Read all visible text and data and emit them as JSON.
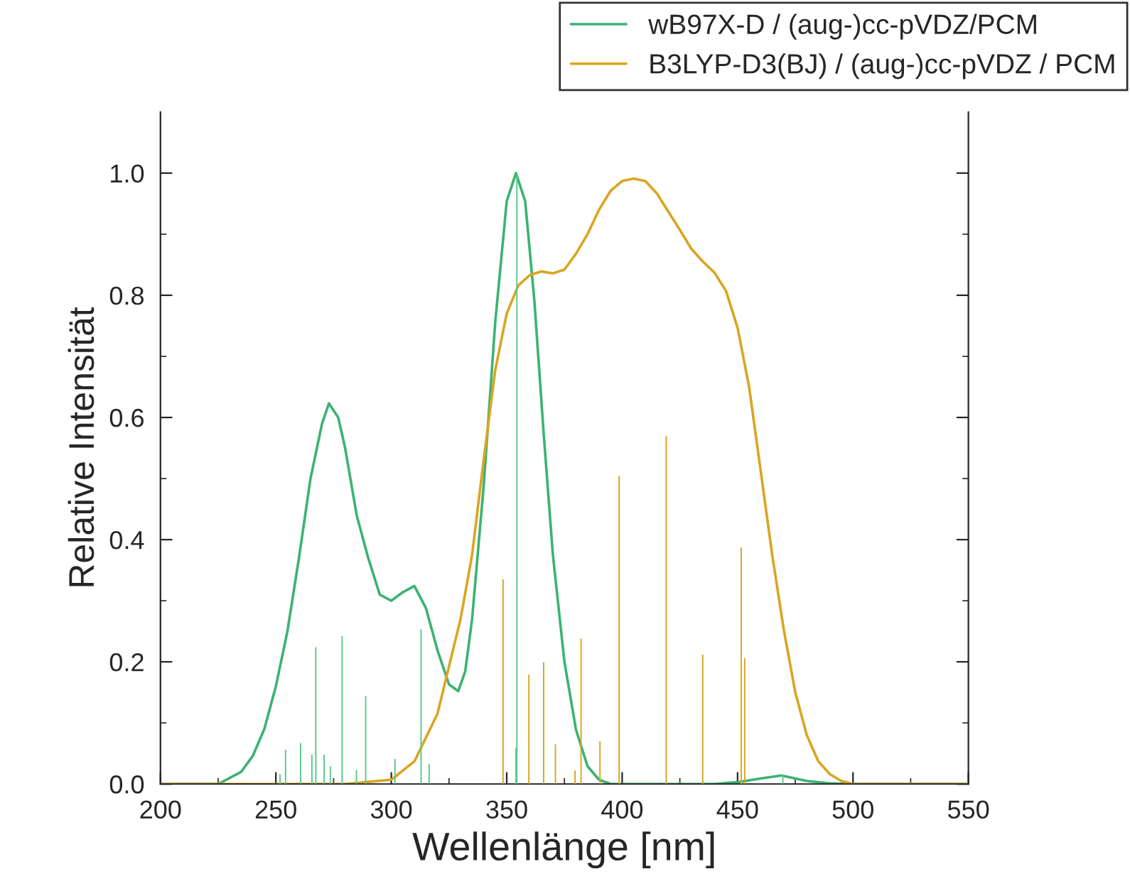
{
  "chart_data": {
    "type": "line",
    "xlabel": "Wellenlänge [nm]",
    "ylabel": "Relative Intensität",
    "xlim": [
      200,
      550
    ],
    "ylim": [
      0,
      1.1
    ],
    "xticks": [
      200,
      {
        "value": 225,
        "label": null
      },
      250,
      {
        "value": 275,
        "label": null
      },
      300,
      {
        "value": 325,
        "label": null
      },
      350,
      {
        "value": 375,
        "label": null
      },
      400,
      {
        "value": 425,
        "label": null
      },
      450,
      {
        "value": 475,
        "label": null
      },
      500,
      {
        "value": 525,
        "label": null
      },
      550
    ],
    "yticks": [
      {
        "value": 0,
        "label": "0.0"
      },
      {
        "value": 0.1,
        "label": null
      },
      {
        "value": 0.2,
        "label": "0.2"
      },
      {
        "value": 0.3,
        "label": null
      },
      {
        "value": 0.4,
        "label": "0.4"
      },
      {
        "value": 0.5,
        "label": null
      },
      {
        "value": 0.6,
        "label": "0.6"
      },
      {
        "value": 0.7,
        "label": null
      },
      {
        "value": 0.8,
        "label": "0.8"
      },
      {
        "value": 0.9,
        "label": null
      },
      {
        "value": 1.0,
        "label": "1.0"
      }
    ],
    "grid": false,
    "legend": "top right",
    "marker": "none",
    "line_style": "solid",
    "series": [
      {
        "name": "wB97X-D / (aug-)cc-pVDZ/PCM",
        "color": "#3cb371",
        "x": [
          200,
          225,
          235,
          240,
          245,
          250,
          255,
          260,
          265,
          270,
          273,
          277,
          280,
          285,
          290,
          295,
          300,
          305,
          310,
          315,
          320,
          325,
          329,
          332,
          335,
          340,
          345,
          350,
          354,
          358,
          362,
          366,
          370,
          375,
          380,
          385,
          390,
          395,
          440,
          450,
          460,
          469,
          480,
          490,
          500,
          550
        ],
        "values": [
          0,
          0,
          0.02,
          0.046,
          0.09,
          0.16,
          0.25,
          0.37,
          0.5,
          0.59,
          0.623,
          0.6,
          0.55,
          0.44,
          0.37,
          0.31,
          0.3,
          0.314,
          0.324,
          0.288,
          0.219,
          0.163,
          0.152,
          0.184,
          0.27,
          0.487,
          0.755,
          0.954,
          1.0,
          0.954,
          0.79,
          0.574,
          0.375,
          0.2,
          0.089,
          0.029,
          0.007,
          0,
          0,
          0.003,
          0.009,
          0.014,
          0.005,
          0.001,
          0,
          0
        ]
      },
      {
        "name": "B3LYP-D3(BJ) / (aug-)cc-pVDZ / PCM",
        "color": "#daa520",
        "x": [
          200,
          260,
          280,
          300,
          310,
          320,
          330,
          335,
          340,
          345,
          350,
          355,
          360,
          365,
          370,
          375,
          380,
          385,
          390,
          395,
          400,
          405,
          410,
          415,
          420,
          425,
          430,
          435,
          440,
          445,
          450,
          455,
          460,
          465,
          470,
          475,
          480,
          485,
          490,
          495,
          500,
          550
        ],
        "values": [
          0,
          0,
          0,
          0.007,
          0.037,
          0.115,
          0.27,
          0.375,
          0.53,
          0.677,
          0.77,
          0.816,
          0.833,
          0.839,
          0.836,
          0.842,
          0.868,
          0.9,
          0.94,
          0.971,
          0.987,
          0.991,
          0.987,
          0.967,
          0.937,
          0.907,
          0.876,
          0.855,
          0.837,
          0.807,
          0.747,
          0.65,
          0.513,
          0.375,
          0.253,
          0.15,
          0.08,
          0.037,
          0.016,
          0.005,
          0,
          0
        ]
      },
      {
        "color": "#5cc88c",
        "type": "bar",
        "x": [
          251.8,
          254.2,
          260.7,
          265.6,
          267.3,
          270.9,
          273.6,
          278.7,
          284.9,
          288.9,
          301.6,
          312.9,
          316.4,
          354.0,
          354.4,
          469.6
        ],
        "values": [
          0.016,
          0.056,
          0.067,
          0.048,
          0.224,
          0.048,
          0.029,
          0.242,
          0.023,
          0.144,
          0.041,
          0.253,
          0.033,
          0.059,
          1.0,
          0.015
        ]
      },
      {
        "color": "#daa520",
        "type": "bar",
        "x": [
          348.4,
          359.6,
          366.0,
          371.1,
          379.6,
          382.2,
          390.4,
          398.7,
          419.1,
          434.9,
          451.6,
          453.1
        ],
        "values": [
          0.335,
          0.179,
          0.199,
          0.065,
          0.022,
          0.238,
          0.07,
          0.504,
          0.57,
          0.212,
          0.387,
          0.206
        ]
      }
    ]
  }
}
